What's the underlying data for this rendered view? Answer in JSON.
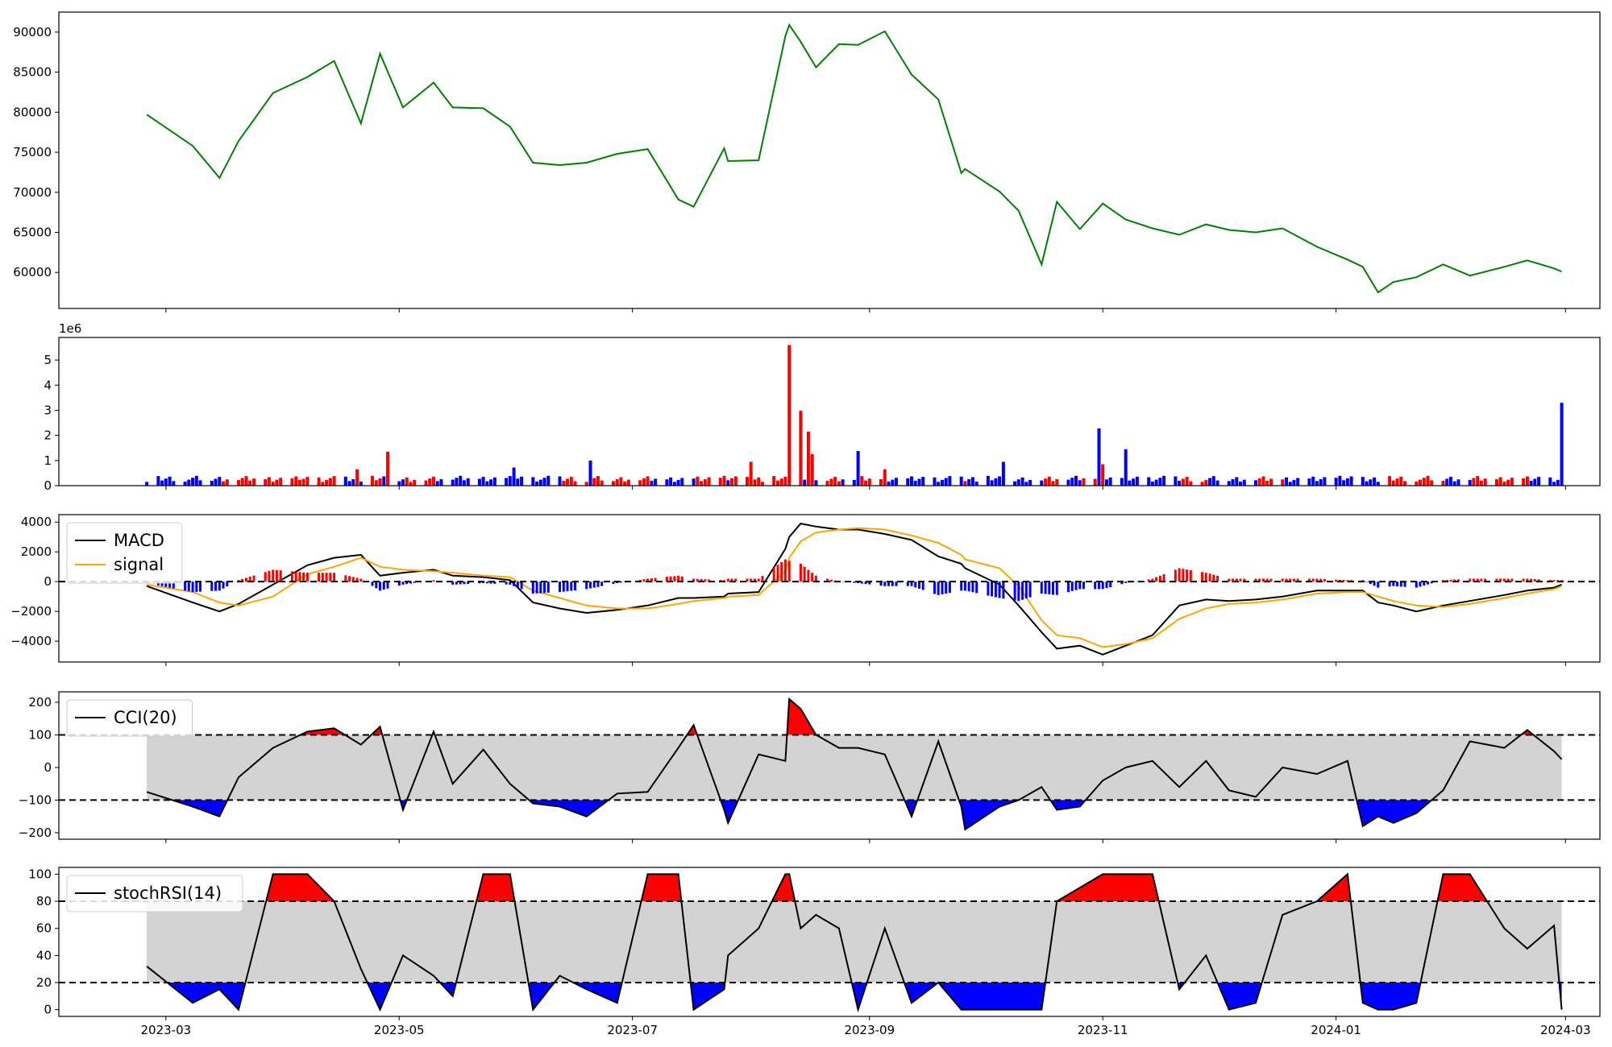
{
  "chart_data": [
    {
      "type": "line",
      "title": "",
      "ylim": [
        55500,
        92500
      ],
      "yticks": [
        60000,
        65000,
        70000,
        75000,
        80000,
        85000,
        90000
      ],
      "x": [
        "2023-02-24",
        "2023-03-08",
        "2023-03-15",
        "2023-03-20",
        "2023-03-29",
        "2023-04-07",
        "2023-04-14",
        "2023-04-21",
        "2023-04-26",
        "2023-05-02",
        "2023-05-10",
        "2023-05-15",
        "2023-05-23",
        "2023-05-30",
        "2023-06-05",
        "2023-06-12",
        "2023-06-19",
        "2023-06-27",
        "2023-07-05",
        "2023-07-13",
        "2023-07-17",
        "2023-07-25",
        "2023-07-26",
        "2023-08-03",
        "2023-08-10",
        "2023-08-11",
        "2023-08-14",
        "2023-08-18",
        "2023-08-24",
        "2023-08-29",
        "2023-09-05",
        "2023-09-12",
        "2023-09-19",
        "2023-09-25",
        "2023-09-26",
        "2023-10-05",
        "2023-10-10",
        "2023-10-16",
        "2023-10-20",
        "2023-10-26",
        "2023-11-01",
        "2023-11-07",
        "2023-11-14",
        "2023-11-21",
        "2023-11-28",
        "2023-12-04",
        "2023-12-11",
        "2023-12-18",
        "2023-12-27",
        "2024-01-04",
        "2024-01-08",
        "2024-01-12",
        "2024-01-16",
        "2024-01-22",
        "2024-01-29",
        "2024-02-05",
        "2024-02-14",
        "2024-02-20",
        "2024-02-27",
        "2024-02-29"
      ],
      "series": [
        {
          "color": "#008000",
          "values": [
            79700,
            75800,
            71800,
            76400,
            82400,
            84400,
            86400,
            78600,
            87300,
            80600,
            83700,
            80600,
            80500,
            78200,
            73700,
            73400,
            73700,
            74800,
            75400,
            69100,
            68200,
            75500,
            73900,
            74000,
            89500,
            90900,
            88800,
            85600,
            88500,
            88400,
            90100,
            84700,
            81600,
            72400,
            72900,
            70100,
            67700,
            61000,
            68800,
            65400,
            68600,
            66600,
            65500,
            64700,
            66000,
            65300,
            65000,
            65500,
            63200,
            61600,
            60700,
            57500,
            58800,
            59400,
            61000,
            59600,
            60700,
            61500,
            60500,
            60100
          ]
        }
      ]
    },
    {
      "type": "bar",
      "title": "",
      "ylim": [
        0,
        5900000
      ],
      "yticks": [
        0,
        1000000,
        2000000,
        3000000,
        4000000,
        5000000
      ],
      "ytick_labels": [
        "0",
        "1",
        "2",
        "3",
        "4",
        "5"
      ],
      "offset_text": "1e6",
      "colors": {
        "up": "#ff0000",
        "down": "#0000ff"
      },
      "bars": [
        {
          "x": "2023-04-05",
          "value": 230000,
          "dir": "up"
        },
        {
          "x": "2023-04-15",
          "value": 1000000,
          "dir": "down"
        },
        {
          "x": "2023-04-20",
          "value": 650000,
          "dir": "up"
        },
        {
          "x": "2023-04-28",
          "value": 1350000,
          "dir": "up"
        },
        {
          "x": "2023-05-31",
          "value": 720000,
          "dir": "down"
        },
        {
          "x": "2023-06-20",
          "value": 1000000,
          "dir": "down"
        },
        {
          "x": "2023-08-01",
          "value": 950000,
          "dir": "up"
        },
        {
          "x": "2023-08-11",
          "value": 5600000,
          "dir": "up"
        },
        {
          "x": "2023-08-14",
          "value": 2980000,
          "dir": "up"
        },
        {
          "x": "2023-08-16",
          "value": 2150000,
          "dir": "up"
        },
        {
          "x": "2023-08-17",
          "value": 1250000,
          "dir": "up"
        },
        {
          "x": "2023-08-29",
          "value": 1380000,
          "dir": "down"
        },
        {
          "x": "2023-09-05",
          "value": 650000,
          "dir": "up"
        },
        {
          "x": "2023-10-06",
          "value": 950000,
          "dir": "down"
        },
        {
          "x": "2023-10-31",
          "value": 2280000,
          "dir": "down"
        },
        {
          "x": "2023-11-01",
          "value": 850000,
          "dir": "up"
        },
        {
          "x": "2023-11-07",
          "value": 1450000,
          "dir": "down"
        },
        {
          "x": "2024-02-29",
          "value": 3300000,
          "dir": "down"
        }
      ]
    },
    {
      "type": "line",
      "title": "",
      "ylim": [
        -5400,
        4500
      ],
      "yticks": [
        -4000,
        -2000,
        0,
        2000,
        4000
      ],
      "hlines": [
        0
      ],
      "legend": {
        "placement": "upper-left"
      },
      "x": [
        "2023-02-24",
        "2023-03-08",
        "2023-03-15",
        "2023-03-20",
        "2023-03-29",
        "2023-04-07",
        "2023-04-14",
        "2023-04-21",
        "2023-04-26",
        "2023-05-02",
        "2023-05-10",
        "2023-05-15",
        "2023-05-23",
        "2023-05-30",
        "2023-06-05",
        "2023-06-12",
        "2023-06-19",
        "2023-06-27",
        "2023-07-05",
        "2023-07-13",
        "2023-07-17",
        "2023-07-25",
        "2023-07-26",
        "2023-08-03",
        "2023-08-10",
        "2023-08-11",
        "2023-08-14",
        "2023-08-18",
        "2023-08-24",
        "2023-08-29",
        "2023-09-05",
        "2023-09-12",
        "2023-09-19",
        "2023-09-25",
        "2023-09-26",
        "2023-10-05",
        "2023-10-10",
        "2023-10-16",
        "2023-10-20",
        "2023-10-26",
        "2023-11-01",
        "2023-11-07",
        "2023-11-14",
        "2023-11-21",
        "2023-11-28",
        "2023-12-04",
        "2023-12-11",
        "2023-12-18",
        "2023-12-27",
        "2024-01-04",
        "2024-01-08",
        "2024-01-12",
        "2024-01-16",
        "2024-01-22",
        "2024-01-29",
        "2024-02-05",
        "2024-02-14",
        "2024-02-20",
        "2024-02-27",
        "2024-02-29"
      ],
      "series": [
        {
          "name": "MACD",
          "color": "#000000",
          "values": [
            -300,
            -1400,
            -2000,
            -1500,
            -200,
            1100,
            1600,
            1800,
            400,
            600,
            800,
            400,
            300,
            100,
            -1400,
            -1800,
            -2100,
            -1900,
            -1600,
            -1100,
            -1100,
            -1000,
            -800,
            -700,
            2200,
            3000,
            3900,
            3700,
            3500,
            3500,
            3200,
            2800,
            1700,
            1200,
            900,
            -200,
            -1600,
            -3400,
            -4500,
            -4300,
            -4900,
            -4300,
            -3600,
            -1600,
            -1200,
            -1300,
            -1200,
            -1000,
            -600,
            -600,
            -600,
            -1400,
            -1600,
            -2000,
            -1600,
            -1300,
            -900,
            -600,
            -400,
            -200
          ]
        },
        {
          "name": "signal",
          "color": "#ffa500",
          "values": [
            -200,
            -700,
            -1400,
            -1600,
            -1000,
            500,
            1000,
            1600,
            1000,
            800,
            700,
            600,
            400,
            300,
            -600,
            -1100,
            -1600,
            -1800,
            -1800,
            -1500,
            -1300,
            -1100,
            -1000,
            -900,
            700,
            1600,
            2700,
            3300,
            3500,
            3600,
            3500,
            3100,
            2600,
            1800,
            1500,
            900,
            -300,
            -2600,
            -3600,
            -3800,
            -4400,
            -4200,
            -3800,
            -2500,
            -1800,
            -1500,
            -1400,
            -1200,
            -800,
            -700,
            -700,
            -1000,
            -1300,
            -1600,
            -1700,
            -1500,
            -1100,
            -800,
            -500,
            -300
          ]
        },
        {
          "name": "histogram",
          "type": "bar",
          "colors": {
            "positive": "#ff0000",
            "negative": "#0000ff"
          },
          "values": [
            -100,
            -700,
            -600,
            100,
            800,
            600,
            600,
            200,
            -600,
            -200,
            100,
            -200,
            -100,
            -200,
            -800,
            -700,
            -500,
            -100,
            200,
            400,
            200,
            100,
            200,
            200,
            1500,
            1400,
            1200,
            400,
            0,
            -100,
            -300,
            -300,
            -900,
            -600,
            -600,
            -1100,
            -1300,
            -800,
            -900,
            -500,
            -500,
            -100,
            200,
            900,
            600,
            200,
            200,
            200,
            200,
            100,
            100,
            -400,
            -300,
            -400,
            100,
            200,
            200,
            200,
            100,
            100
          ]
        }
      ]
    },
    {
      "type": "line",
      "title": "",
      "ylim": [
        -220,
        232
      ],
      "yticks": [
        -200,
        -100,
        0,
        100,
        200
      ],
      "hlines": [
        100,
        -100
      ],
      "band": [
        -100,
        100
      ],
      "fill_colors": {
        "above": "#ff0000",
        "below": "#0000ff",
        "band": "#d3d3d3"
      },
      "legend": {
        "placement": "upper-left"
      },
      "x": [
        "2023-02-24",
        "2023-03-08",
        "2023-03-15",
        "2023-03-20",
        "2023-03-29",
        "2023-04-07",
        "2023-04-14",
        "2023-04-21",
        "2023-04-26",
        "2023-05-02",
        "2023-05-10",
        "2023-05-15",
        "2023-05-23",
        "2023-05-30",
        "2023-06-05",
        "2023-06-12",
        "2023-06-19",
        "2023-06-27",
        "2023-07-05",
        "2023-07-13",
        "2023-07-17",
        "2023-07-25",
        "2023-07-26",
        "2023-08-03",
        "2023-08-10",
        "2023-08-11",
        "2023-08-14",
        "2023-08-18",
        "2023-08-24",
        "2023-08-29",
        "2023-09-05",
        "2023-09-12",
        "2023-09-19",
        "2023-09-25",
        "2023-09-26",
        "2023-10-05",
        "2023-10-10",
        "2023-10-16",
        "2023-10-20",
        "2023-10-26",
        "2023-11-01",
        "2023-11-07",
        "2023-11-14",
        "2023-11-21",
        "2023-11-28",
        "2023-12-04",
        "2023-12-11",
        "2023-12-18",
        "2023-12-27",
        "2024-01-04",
        "2024-01-08",
        "2024-01-12",
        "2024-01-16",
        "2024-01-22",
        "2024-01-29",
        "2024-02-05",
        "2024-02-14",
        "2024-02-20",
        "2024-02-27",
        "2024-02-29"
      ],
      "series": [
        {
          "name": "CCI(20)",
          "color": "#000000",
          "values": [
            -75,
            -120,
            -150,
            -30,
            60,
            110,
            120,
            70,
            125,
            -130,
            110,
            -50,
            55,
            -50,
            -110,
            -120,
            -150,
            -80,
            -75,
            60,
            130,
            -130,
            -170,
            40,
            20,
            210,
            180,
            100,
            60,
            60,
            40,
            -150,
            80,
            -120,
            -190,
            -120,
            -100,
            -60,
            -130,
            -120,
            -40,
            0,
            20,
            -60,
            20,
            -70,
            -90,
            0,
            -20,
            20,
            -180,
            -150,
            -170,
            -140,
            -70,
            80,
            60,
            115,
            50,
            25
          ]
        }
      ]
    },
    {
      "type": "line",
      "title": "",
      "ylim": [
        -5,
        105
      ],
      "yticks": [
        0,
        20,
        40,
        60,
        80,
        100
      ],
      "hlines": [
        80,
        20
      ],
      "band": [
        20,
        80
      ],
      "fill_colors": {
        "above": "#ff0000",
        "below": "#0000ff",
        "band": "#d3d3d3"
      },
      "legend": {
        "placement": "upper-left"
      },
      "x": [
        "2023-02-24",
        "2023-03-08",
        "2023-03-15",
        "2023-03-20",
        "2023-03-29",
        "2023-04-07",
        "2023-04-14",
        "2023-04-21",
        "2023-04-26",
        "2023-05-02",
        "2023-05-10",
        "2023-05-15",
        "2023-05-23",
        "2023-05-30",
        "2023-06-05",
        "2023-06-12",
        "2023-06-19",
        "2023-06-27",
        "2023-07-05",
        "2023-07-13",
        "2023-07-17",
        "2023-07-25",
        "2023-07-26",
        "2023-08-03",
        "2023-08-10",
        "2023-08-11",
        "2023-08-14",
        "2023-08-18",
        "2023-08-24",
        "2023-08-29",
        "2023-09-05",
        "2023-09-12",
        "2023-09-19",
        "2023-09-25",
        "2023-09-26",
        "2023-10-05",
        "2023-10-10",
        "2023-10-16",
        "2023-10-20",
        "2023-10-26",
        "2023-11-01",
        "2023-11-07",
        "2023-11-14",
        "2023-11-21",
        "2023-11-28",
        "2023-12-04",
        "2023-12-11",
        "2023-12-18",
        "2023-12-27",
        "2024-01-04",
        "2024-01-08",
        "2024-01-12",
        "2024-01-16",
        "2024-01-22",
        "2024-01-29",
        "2024-02-05",
        "2024-02-14",
        "2024-02-20",
        "2024-02-27",
        "2024-02-29"
      ],
      "series": [
        {
          "name": "stochRSI(14)",
          "color": "#000000",
          "values": [
            32,
            5,
            15,
            0,
            100,
            100,
            80,
            30,
            0,
            40,
            25,
            10,
            100,
            100,
            0,
            25,
            15,
            5,
            100,
            100,
            0,
            15,
            40,
            60,
            100,
            100,
            60,
            70,
            60,
            0,
            60,
            5,
            20,
            0,
            0,
            0,
            0,
            0,
            80,
            90,
            100,
            100,
            100,
            15,
            40,
            0,
            5,
            70,
            80,
            100,
            5,
            0,
            0,
            5,
            100,
            100,
            60,
            45,
            62,
            0
          ]
        }
      ]
    }
  ],
  "x_axis": {
    "range": [
      "2023-02-01",
      "2024-03-10"
    ],
    "ticks": [
      "2023-03-01",
      "2023-05-01",
      "2023-07-01",
      "2023-09-01",
      "2023-11-01",
      "2024-01-01",
      "2024-03-01"
    ],
    "tick_labels": [
      "2023-03",
      "2023-05",
      "2023-07",
      "2023-09",
      "2023-11",
      "2024-01",
      "2024-03"
    ]
  }
}
